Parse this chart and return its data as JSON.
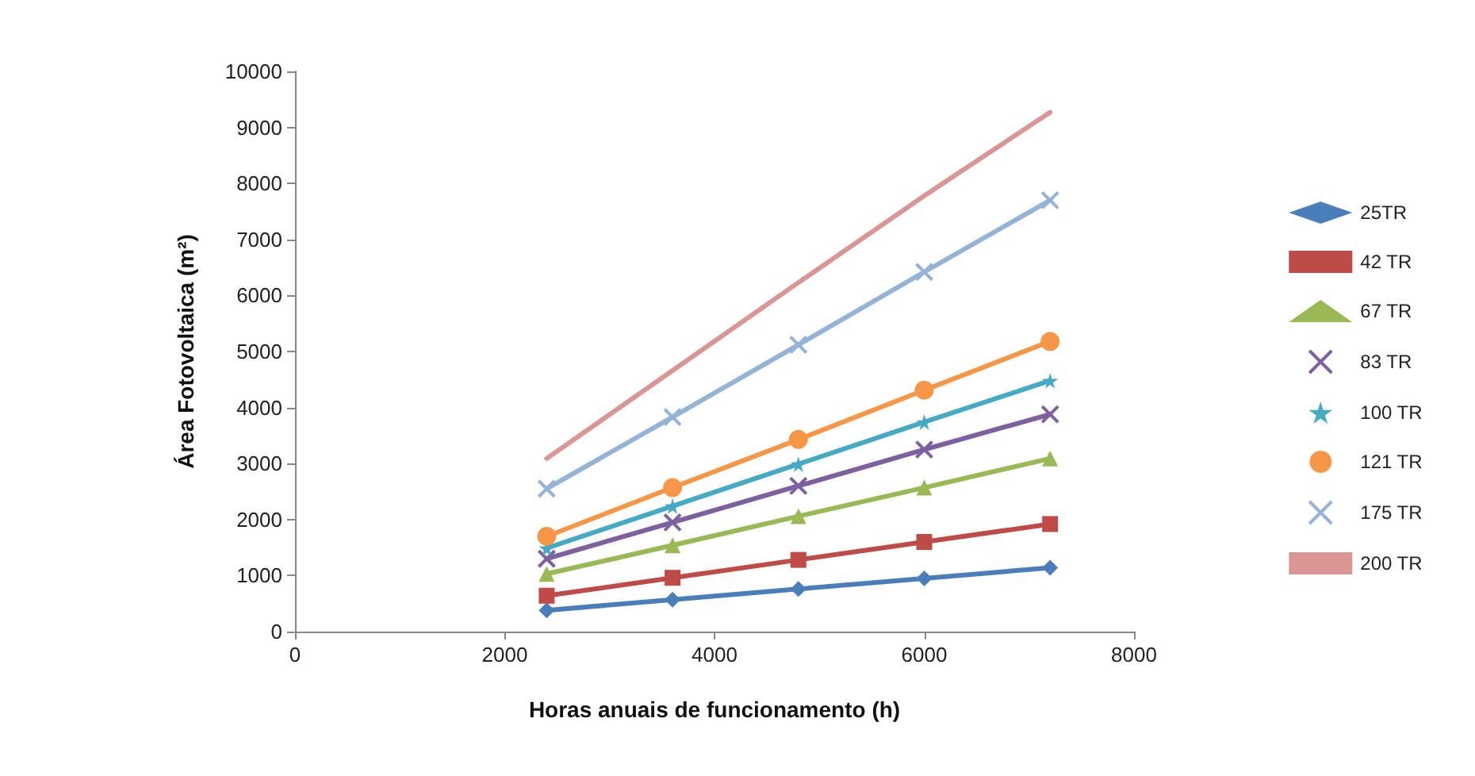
{
  "chart_data": {
    "type": "line",
    "xlabel": "Horas anuais de funcionamento (h)",
    "ylabel": "Área Fotovoltaica (m²)",
    "x": [
      2400,
      3600,
      4800,
      6000,
      7200
    ],
    "xlim": [
      0,
      8000
    ],
    "xticks": [
      0,
      2000,
      4000,
      6000,
      8000
    ],
    "ylim": [
      0,
      10000
    ],
    "yticks": [
      0,
      1000,
      2000,
      3000,
      4000,
      5000,
      6000,
      7000,
      8000,
      9000,
      10000
    ],
    "grid": false,
    "legend": "right",
    "line_style": "solid",
    "series": [
      {
        "name": "25TR",
        "color": "#4a7ebb",
        "marker": "diamond",
        "values": [
          380,
          570,
          760,
          950,
          1140
        ]
      },
      {
        "name": "42 TR",
        "color": "#be4b48",
        "marker": "square",
        "values": [
          640,
          960,
          1280,
          1600,
          1920
        ]
      },
      {
        "name": "67 TR",
        "color": "#98b954",
        "marker": "triangle",
        "values": [
          1030,
          1540,
          2060,
          2570,
          3090
        ]
      },
      {
        "name": "83 TR",
        "color": "#7d60a0",
        "marker": "cross",
        "values": [
          1300,
          1950,
          2600,
          3250,
          3880
        ]
      },
      {
        "name": "100 TR",
        "color": "#46aac5",
        "marker": "star",
        "values": [
          1490,
          2240,
          2990,
          3740,
          4480
        ]
      },
      {
        "name": "121 TR",
        "color": "#f79646",
        "marker": "circle",
        "values": [
          1700,
          2570,
          3430,
          4310,
          5180
        ]
      },
      {
        "name": "175 TR",
        "color": "#95b3d7",
        "marker": "cross",
        "values": [
          2550,
          3830,
          5120,
          6420,
          7700
        ]
      },
      {
        "name": "200 TR",
        "color": "#d99694",
        "marker": "none",
        "values": [
          3090,
          4660,
          6230,
          7780,
          9270
        ]
      }
    ]
  }
}
